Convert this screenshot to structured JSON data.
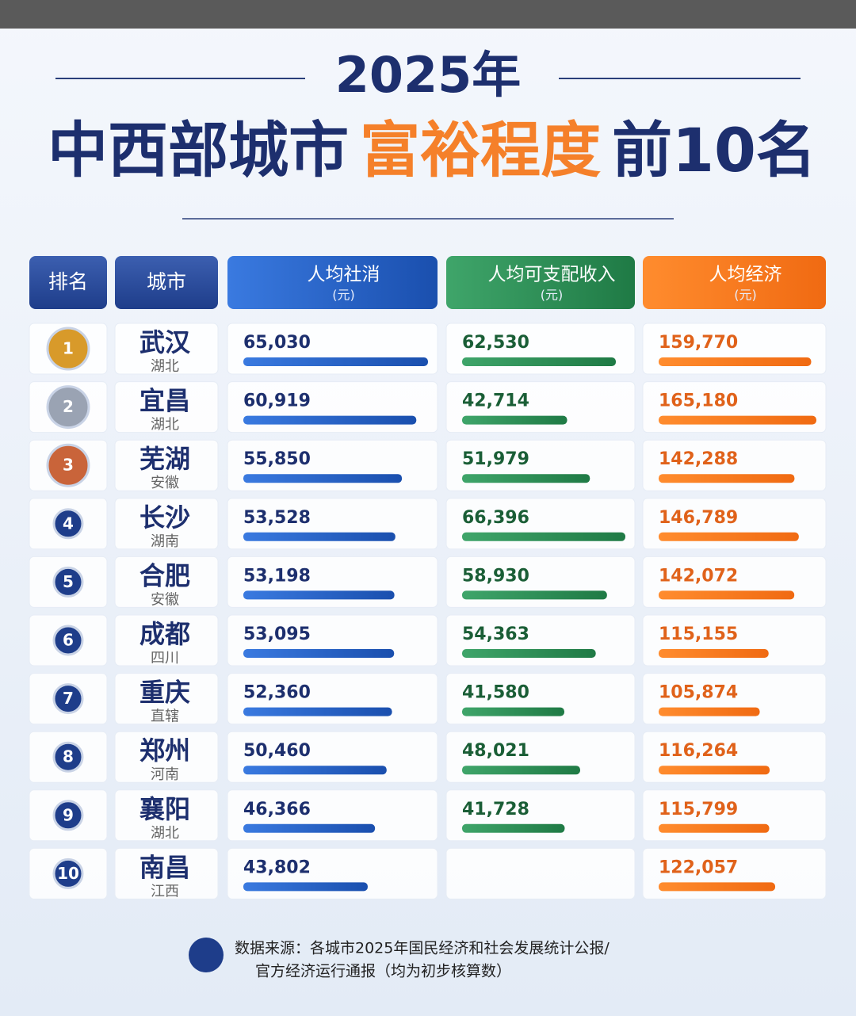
{
  "header": {
    "year": "2025年",
    "title_parts": [
      "中西部城市",
      "富裕程度",
      "前10名"
    ]
  },
  "table": {
    "columns": [
      {
        "label": "排名"
      },
      {
        "label": "城市"
      },
      {
        "label": "人均社消",
        "unit": "(元)"
      },
      {
        "label": "人均可支配收入",
        "unit": "(元)"
      },
      {
        "label": "人均经济",
        "unit": "(元)"
      }
    ],
    "rows": [
      {
        "rank": 1,
        "city": "武汉",
        "province": "湖北",
        "values": [
          65030,
          62530,
          159770
        ],
        "value_labels": [
          "65,030",
          "62,530",
          "159,770"
        ]
      },
      {
        "rank": 2,
        "city": "宜昌",
        "province": "湖北",
        "values": [
          60919,
          42714,
          165180
        ],
        "value_labels": [
          "60,919",
          "42,714",
          "165,180"
        ]
      },
      {
        "rank": 3,
        "city": "芜湖",
        "province": "安徽",
        "values": [
          55850,
          51979,
          142288
        ],
        "value_labels": [
          "55,850",
          "51,979",
          "142,288"
        ]
      },
      {
        "rank": 4,
        "city": "长沙",
        "province": "湖南",
        "values": [
          53528,
          66396,
          146789
        ],
        "value_labels": [
          "53,528",
          "66,396",
          "146,789"
        ]
      },
      {
        "rank": 5,
        "city": "合肥",
        "province": "安徽",
        "values": [
          53198,
          58930,
          142072
        ],
        "value_labels": [
          "53,198",
          "58,930",
          "142,072"
        ]
      },
      {
        "rank": 6,
        "city": "成都",
        "province": "四川",
        "values": [
          53095,
          54363,
          115155
        ],
        "value_labels": [
          "53,095",
          "54,363",
          "115,155"
        ]
      },
      {
        "rank": 7,
        "city": "重庆",
        "province": "直辖",
        "values": [
          52360,
          41580,
          105874
        ],
        "value_labels": [
          "52,360",
          "41,580",
          "105,874"
        ]
      },
      {
        "rank": 8,
        "city": "郑州",
        "province": "河南",
        "values": [
          50460,
          48021,
          116264
        ],
        "value_labels": [
          "50,460",
          "48,021",
          "116,264"
        ]
      },
      {
        "rank": 9,
        "city": "襄阳",
        "province": "湖北",
        "values": [
          46366,
          41728,
          115799
        ],
        "value_labels": [
          "46,366",
          "41,728",
          "115,799"
        ]
      },
      {
        "rank": 10,
        "city": "南昌",
        "province": "江西",
        "values": [
          43802,
          null,
          122057
        ],
        "value_labels": [
          "43,802",
          null,
          "122,057"
        ]
      }
    ]
  },
  "footer": [
    "数据来源：各城市2025年国民经济和社会发展统计公报/",
    "官方经济运行通报（均为初步核算数）"
  ]
}
